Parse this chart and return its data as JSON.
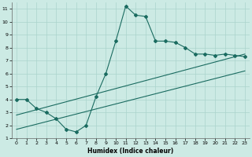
{
  "xlabel": "Humidex (Indice chaleur)",
  "bg_color": "#cceae4",
  "grid_color": "#aad4cc",
  "line_color": "#1a6b60",
  "x_data": [
    0,
    1,
    2,
    3,
    4,
    5,
    6,
    7,
    8,
    9,
    10,
    11,
    12,
    13,
    14,
    15,
    16,
    17,
    18,
    19,
    20,
    21,
    22,
    23
  ],
  "y_curve": [
    4.0,
    4.0,
    3.3,
    3.0,
    2.5,
    1.7,
    1.5,
    2.0,
    4.2,
    6.0,
    8.5,
    11.2,
    10.5,
    10.4,
    8.5,
    8.5,
    8.4,
    8.0,
    7.5,
    7.5,
    7.4,
    7.5,
    7.4,
    7.3
  ],
  "line1_x": [
    0,
    23
  ],
  "line1_y": [
    2.8,
    7.5
  ],
  "line2_x": [
    0,
    23
  ],
  "line2_y": [
    1.7,
    6.2
  ],
  "xlim": [
    -0.5,
    23.5
  ],
  "ylim": [
    1,
    11.5
  ],
  "yticks": [
    1,
    2,
    3,
    4,
    5,
    6,
    7,
    8,
    9,
    10,
    11
  ],
  "xticks": [
    0,
    1,
    2,
    3,
    4,
    5,
    6,
    7,
    8,
    9,
    10,
    11,
    12,
    13,
    14,
    15,
    16,
    17,
    18,
    19,
    20,
    21,
    22,
    23
  ]
}
